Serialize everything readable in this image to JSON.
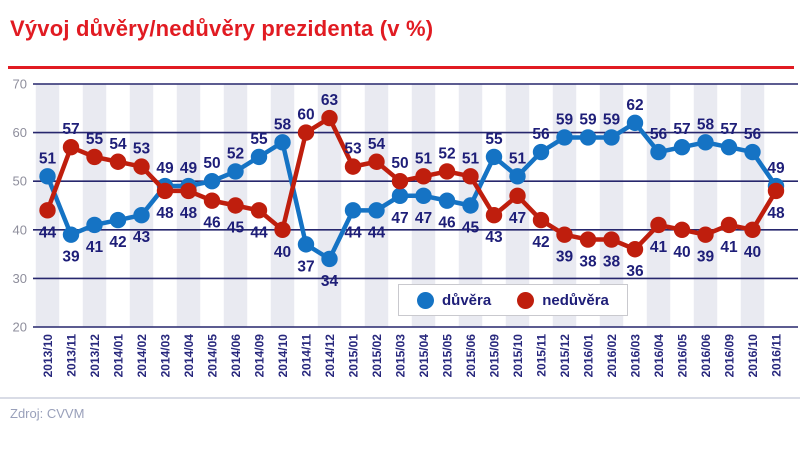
{
  "page": {
    "title": "Vývoj důvěry/nedůvěry prezidenta (v %)",
    "source": "Zdroj: CVVM"
  },
  "colors": {
    "title_red": "#e11b22",
    "series_blue": "#1573c4",
    "series_red": "#bf1e0d",
    "value_label_navy": "#1e1e78",
    "x_label_navy": "#28287d",
    "y_label_gray": "#8e8e9c",
    "gridline_navy": "#27276d",
    "stripe_gray": "#e9eaf1"
  },
  "chart_data": {
    "type": "line",
    "title": "Vývoj důvěry/nedůvěry prezidenta (v %)",
    "categories": [
      "2013/10",
      "2013/11",
      "2013/12",
      "2014/01",
      "2014/02",
      "2014/03",
      "2014/04",
      "2014/05",
      "2014/06",
      "2014/09",
      "2014/10",
      "2014/11",
      "2014/12",
      "2015/01",
      "2015/02",
      "2015/03",
      "2015/04",
      "2015/05",
      "2015/06",
      "2015/09",
      "2015/10",
      "2015/11",
      "2015/12",
      "2016/01",
      "2016/02",
      "2016/03",
      "2016/04",
      "2016/05",
      "2016/06",
      "2016/09",
      "2016/10",
      "2016/11"
    ],
    "series": [
      {
        "name": "důvěra",
        "color": "#1573c4",
        "values": [
          51,
          39,
          41,
          42,
          43,
          49,
          49,
          50,
          52,
          55,
          58,
          37,
          34,
          44,
          44,
          47,
          47,
          46,
          45,
          55,
          51,
          56,
          59,
          59,
          59,
          62,
          56,
          57,
          58,
          57,
          56,
          49
        ]
      },
      {
        "name": "nedůvěra",
        "color": "#bf1e0d",
        "values": [
          44,
          57,
          55,
          54,
          53,
          48,
          48,
          46,
          45,
          44,
          40,
          60,
          63,
          53,
          54,
          50,
          51,
          52,
          51,
          43,
          47,
          42,
          39,
          38,
          38,
          36,
          41,
          40,
          39,
          41,
          40,
          48
        ]
      }
    ],
    "ylim": [
      20,
      70
    ],
    "yticks": [
      70,
      60,
      50,
      40,
      30,
      20
    ],
    "xlabel": "",
    "ylabel": "",
    "grid": "horizontal",
    "legend_position": "inside-bottom-center",
    "data_labels": true,
    "background_stripes": true
  }
}
